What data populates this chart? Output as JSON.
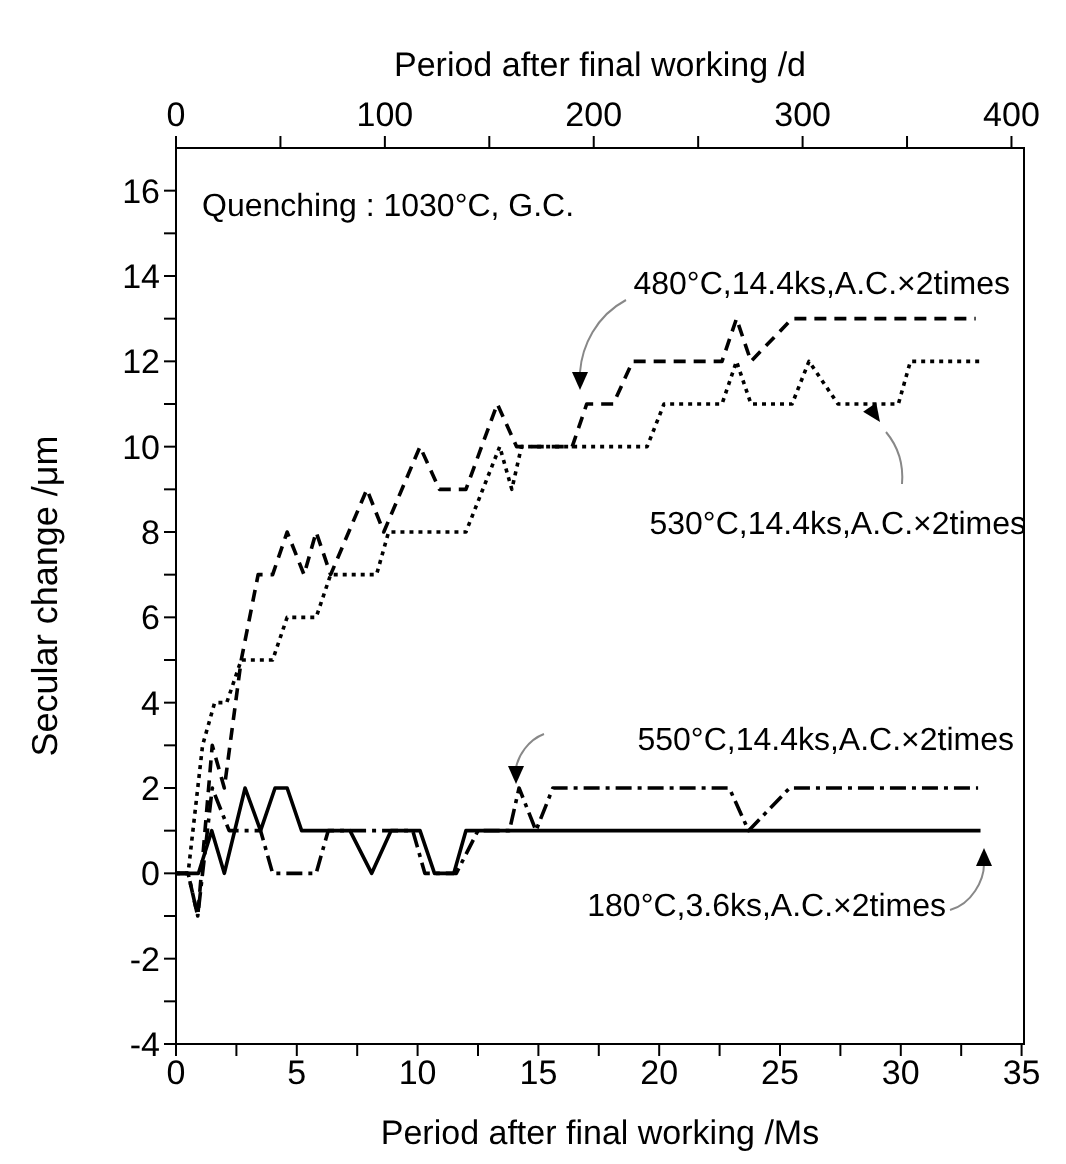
{
  "chart_data": {
    "type": "line",
    "xlabel": "Period after final working /Ms",
    "ylabel": "Secular change /μm",
    "x2label": "Period after final working /d",
    "xlim": [
      0,
      35.1
    ],
    "xticks": [
      0,
      {
        "value": 2.5,
        "label": null
      },
      5,
      {
        "value": 7.5,
        "label": null
      },
      10,
      {
        "value": 12.5,
        "label": null
      },
      15,
      {
        "value": 17.5,
        "label": null
      },
      20,
      {
        "value": 22.5,
        "label": null
      },
      25,
      {
        "value": 27.5,
        "label": null
      },
      30,
      {
        "value": 32.5,
        "label": null
      },
      35
    ],
    "x2lim": [
      0,
      406
    ],
    "x2ticks": [
      0,
      {
        "value": 50,
        "label": null
      },
      100,
      {
        "value": 150,
        "label": null
      },
      200,
      {
        "value": 250,
        "label": null
      },
      300,
      {
        "value": 350,
        "label": null
      },
      400
    ],
    "ylim": [
      -4,
      17
    ],
    "yticks": [
      -4,
      {
        "value": -3,
        "label": null
      },
      -2,
      {
        "value": -1,
        "label": null
      },
      0,
      {
        "value": 1,
        "label": null
      },
      2,
      {
        "value": 3,
        "label": null
      },
      4,
      {
        "value": 5,
        "label": null
      },
      6,
      {
        "value": 7,
        "label": null
      },
      8,
      {
        "value": 9,
        "label": null
      },
      10,
      {
        "value": 11,
        "label": null
      },
      12,
      {
        "value": 13,
        "label": null
      },
      14,
      {
        "value": 15,
        "label": null
      },
      16
    ],
    "grid": false,
    "legend": false,
    "marker": "none",
    "annotations": [
      "Quenching : 1030°C, G.C."
    ],
    "series": [
      {
        "name": "480°C,14.4ks,A.C.×2times",
        "color": "#000000",
        "line_style": "dashed",
        "x": [
          0,
          0.5,
          0.9,
          1.5,
          2.0,
          2.7,
          3.4,
          4.0,
          4.6,
          5.3,
          5.8,
          6.4,
          7.9,
          8.6,
          10.1,
          10.9,
          12.0,
          13.3,
          14.1,
          16.4,
          17.0,
          18.1,
          18.9,
          22.6,
          23.2,
          23.8,
          25.5,
          33.1
        ],
        "values": [
          0,
          0,
          -1,
          3,
          2,
          5,
          7,
          7,
          8,
          7,
          8,
          7,
          9,
          8,
          10,
          9,
          9,
          11,
          10,
          10,
          11,
          11,
          12,
          12,
          13,
          12,
          13,
          13
        ]
      },
      {
        "name": "530°C,14.4ks,A.C.×2times",
        "color": "#000000",
        "line_style": "dotted",
        "x": [
          0,
          0.5,
          1.1,
          1.6,
          2.1,
          2.7,
          4.0,
          4.6,
          5.8,
          6.4,
          8.3,
          8.8,
          12.0,
          13.4,
          13.9,
          14.3,
          19.5,
          20.2,
          22.6,
          23.2,
          23.8,
          25.5,
          26.2,
          27.4,
          29.9,
          30.4,
          33.3
        ],
        "values": [
          0,
          0,
          3,
          4,
          4,
          5,
          5,
          6,
          6,
          7,
          7,
          8,
          8,
          10,
          9,
          10,
          10,
          11,
          11,
          12,
          11,
          11,
          12,
          11,
          11,
          12,
          12
        ]
      },
      {
        "name": "550°C,14.4ks,A.C.×2times",
        "color": "#000000",
        "line_style": "dashdot",
        "x": [
          0,
          0.5,
          0.9,
          1.5,
          2.2,
          3.5,
          4.0,
          5.8,
          6.3,
          9.8,
          10.3,
          11.6,
          12.5,
          13.8,
          14.2,
          14.9,
          15.6,
          22.9,
          23.7,
          25.4,
          33.2
        ],
        "values": [
          0,
          0,
          -1,
          2,
          1,
          1,
          0,
          0,
          1,
          1,
          0,
          0,
          1,
          1,
          2,
          1,
          2,
          2,
          1,
          2,
          2
        ]
      },
      {
        "name": "180°C,3.6ks,A.C.×2times",
        "color": "#000000",
        "line_style": "solid",
        "x": [
          0,
          0.93,
          1.48,
          2.0,
          2.86,
          3.5,
          4.1,
          4.6,
          5.2,
          7.2,
          8.1,
          8.9,
          10.1,
          10.7,
          11.5,
          12.0,
          33.3
        ],
        "values": [
          0,
          0,
          1,
          0,
          2,
          1,
          2,
          2,
          1,
          1,
          0,
          1,
          1,
          0,
          0,
          1,
          1
        ]
      }
    ]
  }
}
